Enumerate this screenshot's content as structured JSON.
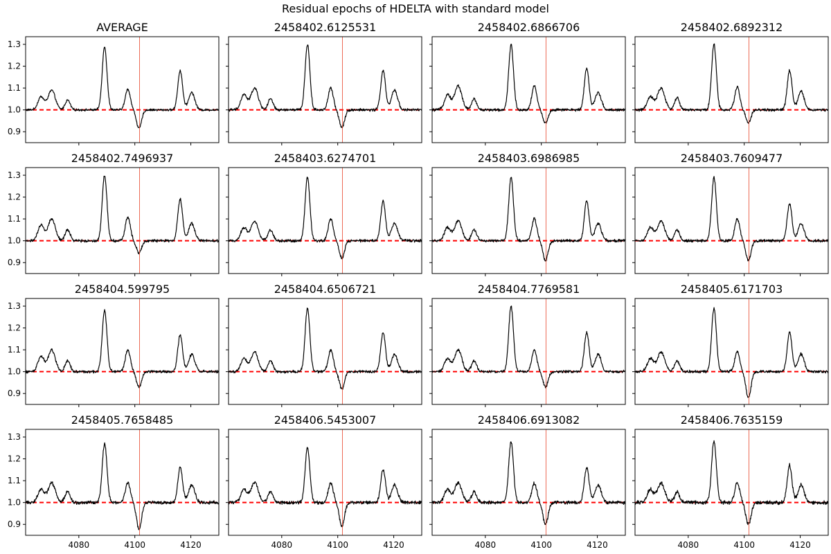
{
  "figure": {
    "title": "Residual epochs of HDELTA with standard model",
    "colors": {
      "spectrum": "#000000",
      "reference_line": "#ff0000",
      "marker_line": "#e8442a",
      "axes": "#000000"
    }
  },
  "chart_data": {
    "type": "line",
    "title": "Residual epochs of HDELTA with standard model",
    "layout": "4x4 grid of subplots, shared axes",
    "xlim": [
      4061,
      4130
    ],
    "ylim": [
      0.85,
      1.335
    ],
    "xticks": [
      4080,
      4100,
      4120
    ],
    "yticks": [
      0.9,
      1.0,
      1.1,
      1.2,
      1.3
    ],
    "xtick_labels": [
      "4080",
      "4100",
      "4120"
    ],
    "ytick_labels": [
      "0.9",
      "1.0",
      "1.1",
      "1.2",
      "1.3"
    ],
    "reference_line": {
      "y": 1.0,
      "style": "dashed",
      "color": "#ff0000"
    },
    "marker_line": {
      "x": 4101.7,
      "color": "#e8442a"
    },
    "features": [
      {
        "x": 4066.5,
        "sigma": 1.1,
        "type": "emission"
      },
      {
        "x": 4070.3,
        "sigma": 1.3,
        "type": "emission"
      },
      {
        "x": 4076.0,
        "sigma": 0.9,
        "type": "emission"
      },
      {
        "x": 4089.2,
        "sigma": 0.85,
        "type": "emission"
      },
      {
        "x": 4097.5,
        "sigma": 0.9,
        "type": "emission"
      },
      {
        "x": 4101.5,
        "sigma": 0.9,
        "type": "absorption"
      },
      {
        "x": 4116.2,
        "sigma": 0.85,
        "type": "emission"
      },
      {
        "x": 4120.3,
        "sigma": 1.1,
        "type": "emission"
      }
    ],
    "panels": [
      {
        "title": "AVERAGE",
        "amplitudes": [
          0.06,
          0.09,
          0.045,
          0.29,
          0.095,
          -0.085,
          0.18,
          0.08
        ],
        "noise": 0.004
      },
      {
        "title": "2458402.6125531",
        "amplitudes": [
          0.07,
          0.1,
          0.05,
          0.3,
          0.1,
          -0.08,
          0.18,
          0.09
        ],
        "noise": 0.005
      },
      {
        "title": "2458402.6866706",
        "amplitudes": [
          0.07,
          0.11,
          0.05,
          0.3,
          0.11,
          -0.06,
          0.19,
          0.08
        ],
        "noise": 0.005
      },
      {
        "title": "2458402.6892312",
        "amplitudes": [
          0.06,
          0.1,
          0.055,
          0.3,
          0.105,
          -0.06,
          0.18,
          0.085
        ],
        "noise": 0.005
      },
      {
        "title": "2458402.7496937",
        "amplitudes": [
          0.07,
          0.1,
          0.05,
          0.3,
          0.11,
          -0.055,
          0.19,
          0.08
        ],
        "noise": 0.005
      },
      {
        "title": "2458403.6274701",
        "amplitudes": [
          0.06,
          0.09,
          0.05,
          0.29,
          0.1,
          -0.08,
          0.18,
          0.08
        ],
        "noise": 0.005
      },
      {
        "title": "2458403.6986985",
        "amplitudes": [
          0.06,
          0.09,
          0.05,
          0.29,
          0.1,
          -0.09,
          0.18,
          0.08
        ],
        "noise": 0.005
      },
      {
        "title": "2458403.7609477",
        "amplitudes": [
          0.06,
          0.09,
          0.05,
          0.29,
          0.1,
          -0.09,
          0.17,
          0.08
        ],
        "noise": 0.005
      },
      {
        "title": "2458404.599795",
        "amplitudes": [
          0.07,
          0.1,
          0.05,
          0.28,
          0.1,
          -0.07,
          0.17,
          0.08
        ],
        "noise": 0.005
      },
      {
        "title": "2458404.6506721",
        "amplitudes": [
          0.06,
          0.09,
          0.05,
          0.29,
          0.1,
          -0.08,
          0.18,
          0.08
        ],
        "noise": 0.005
      },
      {
        "title": "2458404.7769581",
        "amplitudes": [
          0.06,
          0.1,
          0.05,
          0.3,
          0.1,
          -0.07,
          0.18,
          0.08
        ],
        "noise": 0.005
      },
      {
        "title": "2458405.6171703",
        "amplitudes": [
          0.06,
          0.09,
          0.05,
          0.29,
          0.09,
          -0.12,
          0.18,
          0.08
        ],
        "noise": 0.005
      },
      {
        "title": "2458405.7658485",
        "amplitudes": [
          0.06,
          0.09,
          0.05,
          0.27,
          0.09,
          -0.12,
          0.16,
          0.08
        ],
        "noise": 0.006
      },
      {
        "title": "2458406.5453007",
        "amplitudes": [
          0.06,
          0.09,
          0.05,
          0.25,
          0.09,
          -0.11,
          0.15,
          0.08
        ],
        "noise": 0.006
      },
      {
        "title": "2458406.6913082",
        "amplitudes": [
          0.06,
          0.09,
          0.05,
          0.28,
          0.09,
          -0.1,
          0.16,
          0.08
        ],
        "noise": 0.006
      },
      {
        "title": "2458406.7635159",
        "amplitudes": [
          0.06,
          0.09,
          0.05,
          0.28,
          0.09,
          -0.1,
          0.17,
          0.08
        ],
        "noise": 0.007
      }
    ]
  }
}
